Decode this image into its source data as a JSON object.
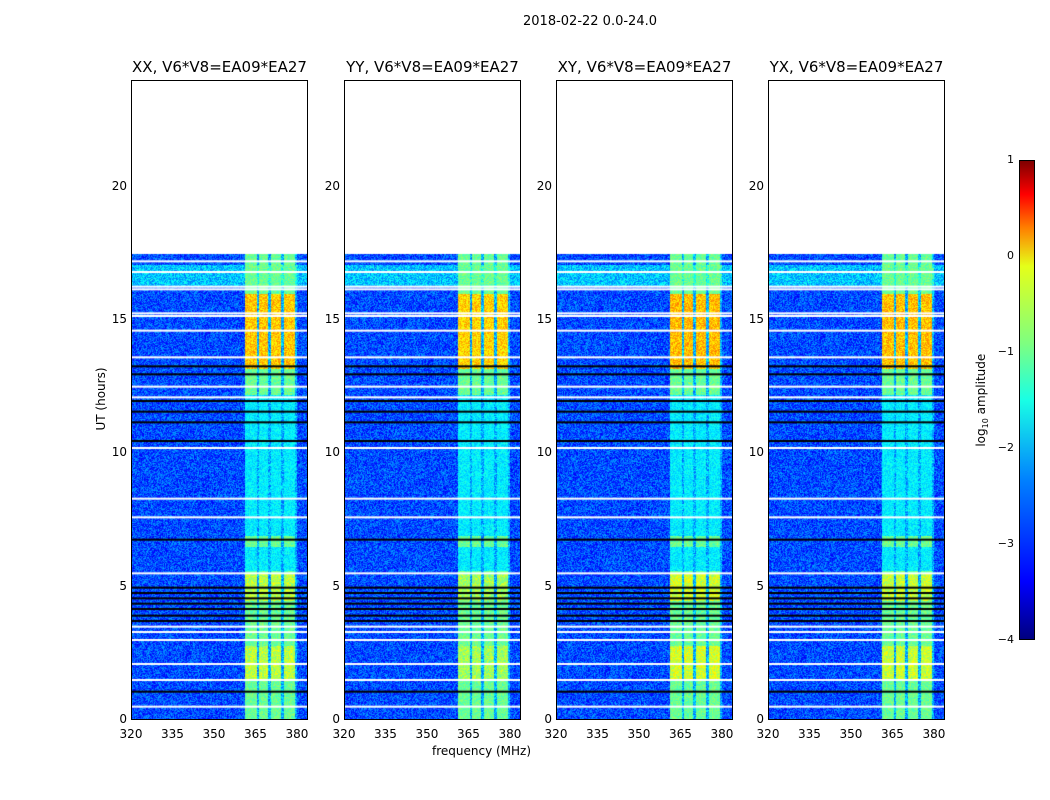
{
  "chart_data": {
    "type": "heatmap",
    "title": "2018-02-22 0.0-24.0",
    "xlabel": "frequency (MHz)",
    "ylabel": "UT (hours)",
    "xlim": [
      320,
      384
    ],
    "ylim": [
      0,
      24
    ],
    "xticks": [
      "320",
      "335",
      "350",
      "365",
      "380"
    ],
    "xtick_values": [
      320,
      335,
      350,
      365,
      380
    ],
    "yticks": [
      "0",
      "5",
      "10",
      "15",
      "20"
    ],
    "ytick_values": [
      0,
      5,
      10,
      15,
      20
    ],
    "panels": [
      {
        "title": "XX, V6*V8=EA09*EA27",
        "band_strength": 1.0
      },
      {
        "title": "YY, V6*V8=EA09*EA27",
        "band_strength": 1.1
      },
      {
        "title": "XY, V6*V8=EA09*EA27",
        "band_strength": 0.9
      },
      {
        "title": "YX, V6*V8=EA09*EA27",
        "band_strength": 0.95
      }
    ],
    "data_coverage_hours": [
      0,
      17.5
    ],
    "baseline_log_amplitude": -3.0,
    "bright_subbands_mhz": [
      [
        361,
        365.5
      ],
      [
        366,
        369.5
      ],
      [
        370.5,
        374
      ],
      [
        375,
        379
      ]
    ],
    "bright_subband_log_amplitude": -1.6,
    "strong_intervals_hours": [
      [
        13.2,
        16.0,
        -0.6
      ],
      [
        4.5,
        5.5,
        -1.2
      ],
      [
        1.5,
        2.8,
        -1.2
      ]
    ],
    "flagged_rows_white_hours": [
      0.5,
      1.5,
      2.1,
      3.0,
      3.3,
      3.5,
      5.5,
      7.6,
      8.3,
      10.2,
      12.1,
      12.5,
      13.6,
      14.6,
      15.15,
      15.25,
      16.15,
      16.25,
      16.8,
      17.2
    ],
    "low_rows_black_hours": [
      1.1,
      3.75,
      3.95,
      4.2,
      4.4,
      4.6,
      4.8,
      5.0,
      6.8,
      10.5,
      11.2,
      11.6,
      12.0,
      13.0,
      13.3
    ],
    "colorbar": {
      "label_prefix": "log",
      "label_sub": "10",
      "label_suffix": " amplitude",
      "range": [
        -4,
        1
      ],
      "ticks": [
        "1",
        "0",
        "−1",
        "−2",
        "−3",
        "−4"
      ],
      "tick_values": [
        1,
        0,
        -1,
        -2,
        -3,
        -4
      ]
    }
  }
}
